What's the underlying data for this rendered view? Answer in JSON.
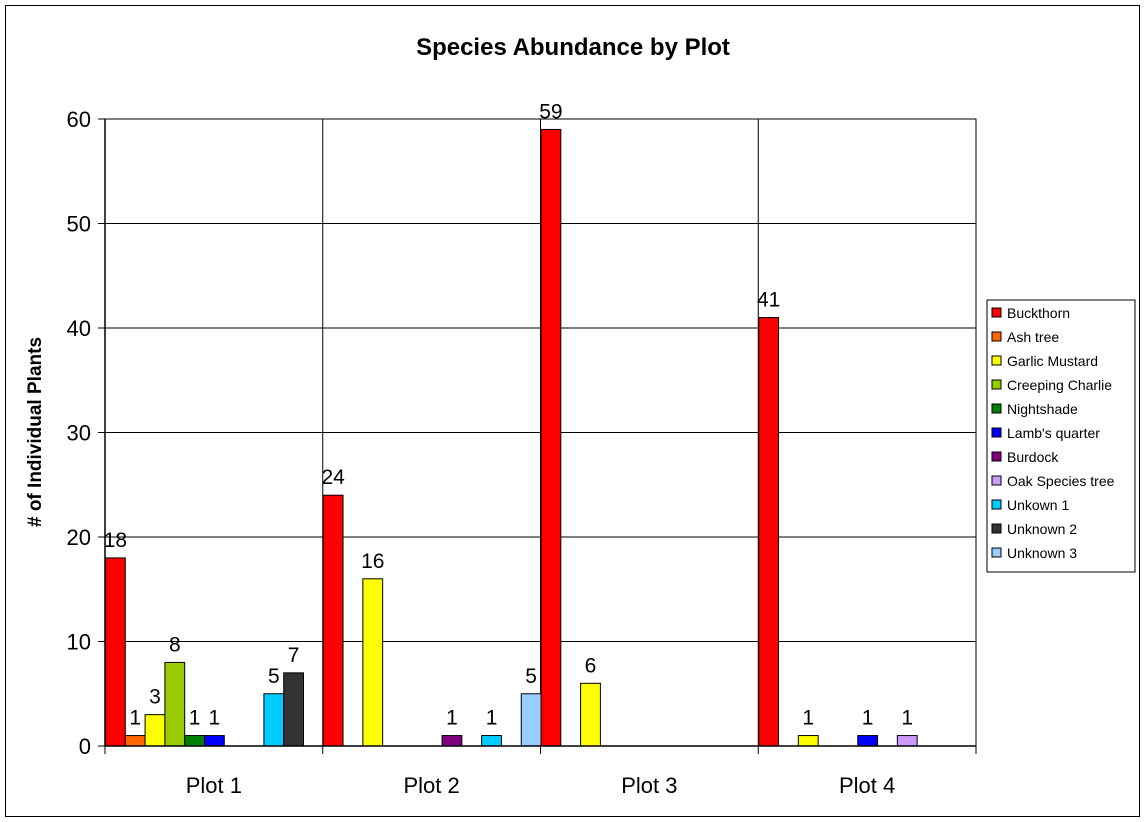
{
  "chart_data": {
    "type": "bar",
    "title": "Species Abundance by Plot",
    "ylabel": "# of Individual Plants",
    "xlabel": "",
    "ylim": [
      0,
      60
    ],
    "yticks": [
      "0",
      "10",
      "20",
      "30",
      "40",
      "50",
      "60"
    ],
    "grid": true,
    "legend_position": "right",
    "categories": [
      "Plot 1",
      "Plot 2",
      "Plot 3",
      "Plot 4"
    ],
    "series": [
      {
        "name": "Buckthorn",
        "color": "#ff0000",
        "values": [
          18,
          24,
          59,
          41
        ]
      },
      {
        "name": "Ash tree",
        "color": "#ff6600",
        "values": [
          1,
          0,
          0,
          0
        ]
      },
      {
        "name": "Garlic Mustard",
        "color": "#ffff00",
        "values": [
          3,
          16,
          6,
          1
        ]
      },
      {
        "name": "Creeping Charlie",
        "color": "#99cc00",
        "values": [
          8,
          0,
          0,
          0
        ]
      },
      {
        "name": "Nightshade",
        "color": "#008000",
        "values": [
          1,
          0,
          0,
          0
        ]
      },
      {
        "name": "Lamb's quarter",
        "color": "#0000ff",
        "values": [
          1,
          0,
          0,
          1
        ]
      },
      {
        "name": "Burdock",
        "color": "#800080",
        "values": [
          0,
          1,
          0,
          0
        ]
      },
      {
        "name": "Oak Species tree",
        "color": "#cc99ff",
        "values": [
          0,
          0,
          0,
          1
        ]
      },
      {
        "name": "Unkown 1",
        "color": "#00ccff",
        "values": [
          5,
          1,
          0,
          0
        ]
      },
      {
        "name": "Unknown 2",
        "color": "#333333",
        "values": [
          7,
          0,
          0,
          0
        ]
      },
      {
        "name": "Unknown 3",
        "color": "#99ccff",
        "values": [
          0,
          5,
          0,
          0
        ]
      }
    ]
  }
}
